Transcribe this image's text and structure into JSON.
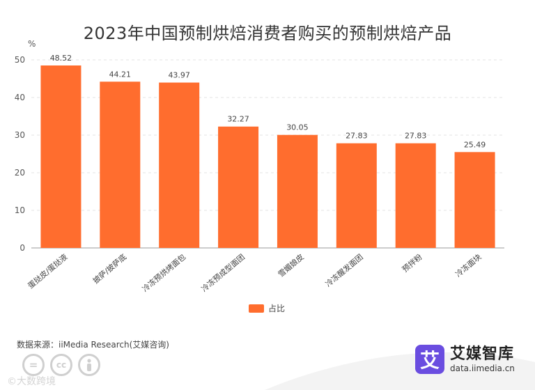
{
  "chart_data": {
    "type": "bar",
    "title": "2023年中国预制烘焙消费者购买的预制烘焙产品",
    "ylabel": "%",
    "xlabel": "",
    "ylim": [
      0,
      50
    ],
    "yticks": [
      0,
      10,
      20,
      30,
      40,
      50
    ],
    "categories": [
      "蛋挞皮/蛋挞液",
      "披萨/披萨底",
      "冷冻预烘烤面包",
      "冷冻预成型面团",
      "雪媚娘皮",
      "冷冻醒发面团",
      "预拌粉",
      "冷冻面块"
    ],
    "series": [
      {
        "name": "占比",
        "color": "#ff6d2e",
        "values": [
          48.52,
          44.21,
          43.97,
          32.27,
          30.05,
          27.83,
          27.83,
          25.49
        ]
      }
    ],
    "legend_position": "bottom-center"
  },
  "source": "数据来源：iiMedia Research(艾媒咨询)",
  "brand": {
    "logo_char": "艾",
    "name": "艾媒智库",
    "url": "data.iimedia.cn"
  },
  "watermark": "©大数跨境",
  "cc_icons": [
    "=",
    "cc",
    "person"
  ]
}
